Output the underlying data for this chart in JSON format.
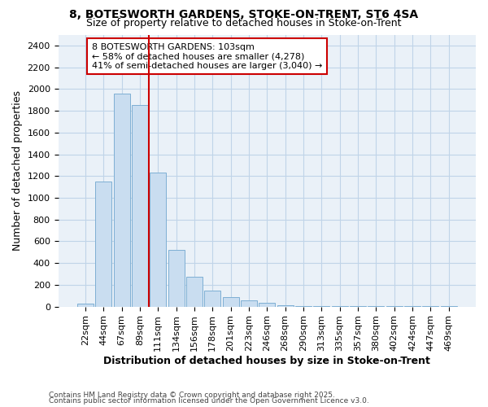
{
  "title_line1": "8, BOTESWORTH GARDENS, STOKE-ON-TRENT, ST6 4SA",
  "title_line2": "Size of property relative to detached houses in Stoke-on-Trent",
  "xlabel": "Distribution of detached houses by size in Stoke-on-Trent",
  "ylabel": "Number of detached properties",
  "categories": [
    "22sqm",
    "44sqm",
    "67sqm",
    "89sqm",
    "111sqm",
    "134sqm",
    "156sqm",
    "178sqm",
    "201sqm",
    "223sqm",
    "246sqm",
    "268sqm",
    "290sqm",
    "313sqm",
    "335sqm",
    "357sqm",
    "380sqm",
    "402sqm",
    "424sqm",
    "447sqm",
    "469sqm"
  ],
  "values": [
    25,
    1150,
    1960,
    1850,
    1230,
    520,
    275,
    150,
    90,
    55,
    35,
    15,
    5,
    3,
    2,
    1,
    1,
    1,
    1,
    1,
    1
  ],
  "bar_width": 0.9,
  "bar_color": "#c9ddf0",
  "bar_edgecolor": "#7eafd4",
  "red_line_x": 4.0,
  "red_line_color": "#cc0000",
  "annotation_text": "8 BOTESWORTH GARDENS: 103sqm\n← 58% of detached houses are smaller (4,278)\n41% of semi-detached houses are larger (3,040) →",
  "annotation_box_color": "#ffffff",
  "annotation_box_edgecolor": "#cc0000",
  "ylim": [
    0,
    2500
  ],
  "yticks": [
    0,
    200,
    400,
    600,
    800,
    1000,
    1200,
    1400,
    1600,
    1800,
    2000,
    2200,
    2400
  ],
  "fig_background_color": "#ffffff",
  "plot_background_color": "#eaf1f8",
  "grid_color": "#c0d4e8",
  "footer_line1": "Contains HM Land Registry data © Crown copyright and database right 2025.",
  "footer_line2": "Contains public sector information licensed under the Open Government Licence v3.0.",
  "title_fontsize": 10,
  "subtitle_fontsize": 9,
  "axis_label_fontsize": 9,
  "tick_fontsize": 8,
  "annotation_fontsize": 8
}
